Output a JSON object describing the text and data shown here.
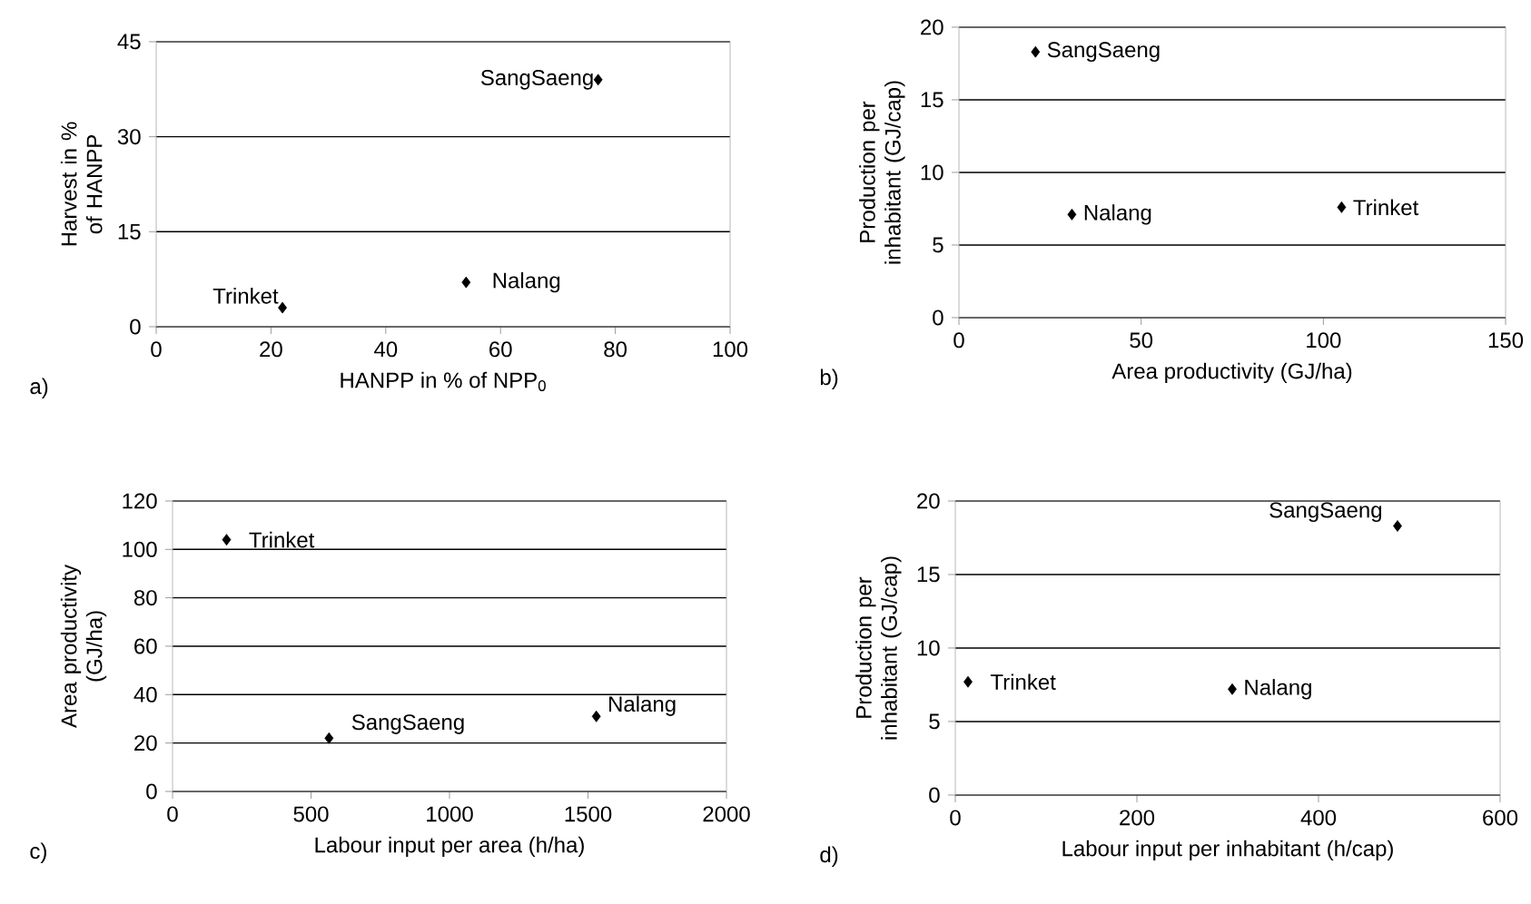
{
  "chart_data": [
    {
      "type": "scatter",
      "xlabel": "HANPP in % of NPP$_{0}$",
      "ylabel": "Harvest in % of HANPP",
      "x": [
        22,
        54,
        77
      ],
      "values": [
        3,
        7,
        39
      ],
      "color": "#000000",
      "marker": "diamond",
      "grid": "y",
      "xlim": [
        0,
        100
      ],
      "ylim": [
        0,
        45
      ],
      "xticks": [
        0,
        20,
        40,
        60,
        80,
        100
      ],
      "yticks": [
        0,
        15,
        30,
        45
      ],
      "annotations": [
        "a)",
        {
          "text": "Trinket",
          "x": 22,
          "y": 3
        },
        {
          "text": "Nalang",
          "x": 54,
          "y": 7
        },
        {
          "text": "SangSaeng",
          "x": 77,
          "y": 39
        }
      ]
    },
    {
      "type": "scatter",
      "xlabel": "Area productivity (GJ/ha)",
      "ylabel": "Production per inhabitant (GJ/cap)",
      "x": [
        21,
        31,
        105
      ],
      "values": [
        18.3,
        7.1,
        7.6
      ],
      "color": "#000000",
      "marker": "diamond",
      "grid": "y",
      "xlim": [
        0,
        150
      ],
      "ylim": [
        0,
        20
      ],
      "xticks": [
        0,
        50,
        100,
        150
      ],
      "yticks": [
        0,
        5,
        10,
        15,
        20
      ],
      "annotations": [
        "b)",
        {
          "text": "SangSaeng",
          "x": 21,
          "y": 18.3
        },
        {
          "text": "Nalang",
          "x": 31,
          "y": 7.1
        },
        {
          "text": "Trinket",
          "x": 105,
          "y": 7.6
        }
      ]
    },
    {
      "type": "scatter",
      "xlabel": "Labour input per area (h/ha)",
      "ylabel": "Area productivity (GJ/ha)",
      "x": [
        195,
        565,
        1530
      ],
      "values": [
        104,
        22,
        31
      ],
      "color": "#000000",
      "marker": "diamond",
      "grid": "y",
      "xlim": [
        0,
        2000
      ],
      "ylim": [
        0,
        120
      ],
      "xticks": [
        0,
        500,
        1000,
        1500,
        2000
      ],
      "yticks": [
        0,
        20,
        40,
        60,
        80,
        100,
        120
      ],
      "annotations": [
        "c)",
        {
          "text": "Trinket",
          "x": 195,
          "y": 104
        },
        {
          "text": "SangSaeng",
          "x": 565,
          "y": 22
        },
        {
          "text": "Nalang",
          "x": 1530,
          "y": 31
        }
      ]
    },
    {
      "type": "scatter",
      "xlabel": "Labour input per inhabitant (h/cap)",
      "ylabel": "Production per inhabitant (GJ/cap)",
      "x": [
        14,
        305,
        487
      ],
      "values": [
        7.7,
        7.2,
        18.3
      ],
      "color": "#000000",
      "marker": "diamond",
      "grid": "y",
      "xlim": [
        0,
        600
      ],
      "ylim": [
        0,
        20
      ],
      "xticks": [
        0,
        200,
        400,
        600
      ],
      "yticks": [
        0,
        5,
        10,
        15,
        20
      ],
      "annotations": [
        "d)",
        {
          "text": "Trinket",
          "x": 14,
          "y": 7.7
        },
        {
          "text": "Nalang",
          "x": 305,
          "y": 7.2
        },
        {
          "text": "SangSaeng",
          "x": 487,
          "y": 18.3
        }
      ]
    }
  ]
}
